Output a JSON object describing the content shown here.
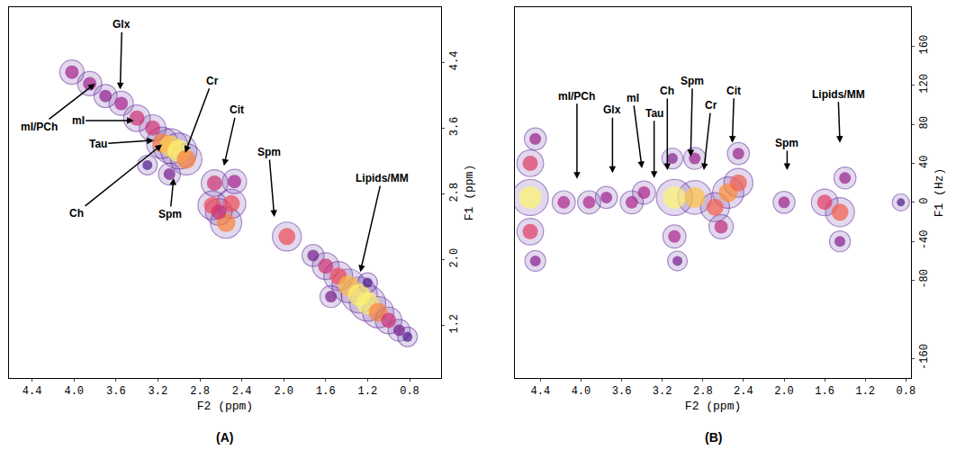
{
  "chart_data": [
    {
      "type": "scatter",
      "title": "(A)",
      "x_label": "F2 (ppm)",
      "y_label": "F1 (ppm)",
      "xlim": [
        4.62,
        0.5
      ],
      "ylim": [
        0.56,
        5.07
      ],
      "xticks": [
        4.4,
        {
          "value": 4,
          "label": "4.0"
        },
        3.6,
        3.2,
        2.8,
        2.4,
        {
          "value": 2,
          "label": "2.0"
        },
        1.6,
        1.2,
        0.8
      ],
      "yticks": [
        1.2,
        {
          "value": 2,
          "label": "2.0"
        },
        2.8,
        3.6,
        4.4
      ],
      "grid": false,
      "x": [
        4.02,
        3.85,
        3.7,
        3.55,
        3.4,
        3.25,
        3.16,
        3.08,
        3.0,
        2.93,
        3.09,
        3.3,
        2.66,
        2.47,
        2.68,
        2.5,
        2.55,
        2.62,
        1.97,
        1.72,
        1.6,
        1.48,
        1.38,
        1.28,
        1.2,
        1.1,
        1.0,
        0.9,
        0.82,
        1.55,
        1.2
      ],
      "y": [
        4.28,
        4.14,
        3.99,
        3.9,
        3.72,
        3.6,
        3.42,
        3.38,
        3.32,
        3.22,
        3.04,
        3.15,
        2.93,
        2.95,
        2.66,
        2.68,
        2.45,
        2.58,
        2.28,
        2.05,
        1.92,
        1.8,
        1.68,
        1.57,
        1.47,
        1.36,
        1.26,
        1.14,
        1.06,
        1.55,
        1.72
      ],
      "intensity": [
        0.5,
        0.5,
        0.45,
        0.5,
        0.6,
        0.6,
        0.8,
        0.95,
        1.0,
        0.8,
        0.4,
        0.3,
        0.6,
        0.5,
        0.7,
        0.7,
        0.8,
        0.6,
        0.7,
        0.4,
        0.6,
        0.7,
        0.9,
        1.0,
        1.0,
        0.8,
        0.6,
        0.4,
        0.3,
        0.4,
        0.3
      ],
      "annotations": [
        {
          "text": "Glx",
          "x": 3.56,
          "y": 4.07
        },
        {
          "text": "mI/PCh",
          "x": 3.8,
          "y": 4.14
        },
        {
          "text": "mI",
          "x": 3.43,
          "y": 3.69
        },
        {
          "text": "Tau",
          "x": 3.24,
          "y": 3.45
        },
        {
          "text": "Ch",
          "x": 3.16,
          "y": 3.4
        },
        {
          "text": "Cr",
          "x": 2.94,
          "y": 3.3
        },
        {
          "text": "Spm",
          "x": 3.05,
          "y": 2.99
        },
        {
          "text": "Cit",
          "x": 2.57,
          "y": 3.14
        },
        {
          "text": "Spm",
          "x": 2.09,
          "y": 2.52
        },
        {
          "text": "Lipids/MM",
          "x": 1.27,
          "y": 1.85
        }
      ]
    },
    {
      "type": "scatter",
      "title": "(B)",
      "x_label": "F2 (ppm)",
      "y_label": "F1 (Hz)",
      "xlim": [
        4.65,
        0.75
      ],
      "ylim": [
        -180,
        200
      ],
      "xticks": [
        4.4,
        {
          "value": 4,
          "label": "4.0"
        },
        3.6,
        3.2,
        2.8,
        2.4,
        {
          "value": 2,
          "label": "2.0"
        },
        1.6,
        1.2,
        0.8
      ],
      "yticks": [
        160,
        120,
        80,
        40,
        0,
        -40,
        -80,
        -160
      ],
      "grid": false,
      "x": [
        4.5,
        4.5,
        4.5,
        4.45,
        4.45,
        4.17,
        3.92,
        3.75,
        3.5,
        3.38,
        3.08,
        3.08,
        3.1,
        3.05,
        2.88,
        2.88,
        2.68,
        2.55,
        2.45,
        2.45,
        2.62,
        2.0,
        1.6,
        1.45,
        1.4,
        1.45,
        0.85
      ],
      "y": [
        5,
        40,
        -30,
        65,
        -60,
        0,
        0,
        5,
        0,
        10,
        5,
        -35,
        45,
        -60,
        5,
        45,
        -5,
        10,
        20,
        50,
        -25,
        0,
        0,
        -10,
        25,
        -40,
        0
      ],
      "intensity": [
        1.0,
        0.6,
        0.6,
        0.4,
        0.35,
        0.45,
        0.45,
        0.4,
        0.45,
        0.45,
        1.0,
        0.45,
        0.35,
        0.3,
        0.9,
        0.4,
        0.7,
        0.8,
        0.7,
        0.4,
        0.5,
        0.4,
        0.6,
        0.7,
        0.4,
        0.35,
        0.2
      ],
      "annotations": [
        {
          "text": "mI/PCh",
          "x": 4.04,
          "y": 24
        },
        {
          "text": "Glx",
          "x": 3.69,
          "y": 30
        },
        {
          "text": "mI",
          "x": 3.4,
          "y": 35
        },
        {
          "text": "Tau",
          "x": 3.28,
          "y": 25
        },
        {
          "text": "Ch",
          "x": 3.15,
          "y": 33
        },
        {
          "text": "Spm",
          "x": 2.92,
          "y": 47
        },
        {
          "text": "Cr",
          "x": 2.79,
          "y": 33
        },
        {
          "text": "Cit",
          "x": 2.51,
          "y": 61
        },
        {
          "text": "Spm",
          "x": 1.97,
          "y": 33
        },
        {
          "text": "Lipids/MM",
          "x": 1.45,
          "y": 61
        }
      ]
    }
  ]
}
